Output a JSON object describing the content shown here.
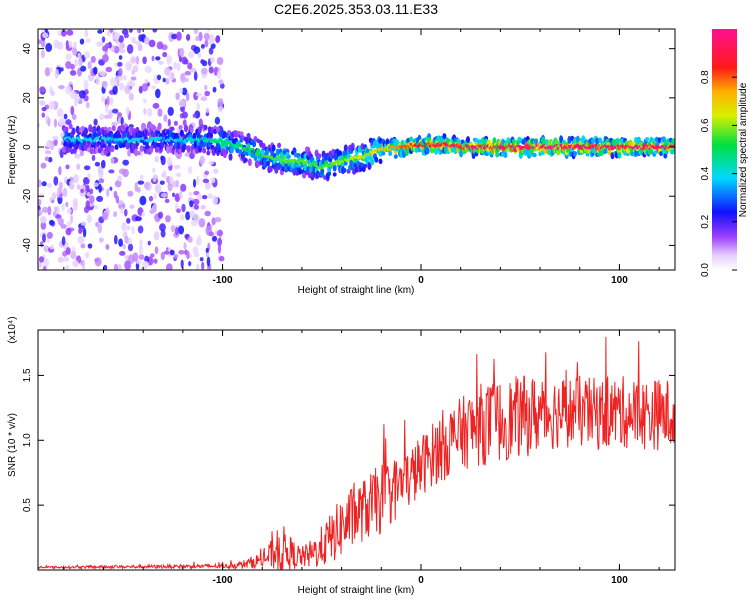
{
  "figure_title": "C2E6.2025.353.03.11.E33",
  "colors": {
    "snr_line": "#ee2222",
    "axis": "#000000",
    "background": "#ffffff"
  },
  "chart_data": [
    {
      "type": "heatmap",
      "title": "C2E6.2025.353.03.11.E33",
      "xlabel": "Height of straight line (km)",
      "ylabel": "Frequency (Hz)",
      "xlim": [
        -193,
        128
      ],
      "ylim": [
        -50,
        48
      ],
      "xticks": [
        -100,
        0,
        100
      ],
      "xtick_labels": [
        "-100",
        "0",
        "100"
      ],
      "yticks": [
        40,
        20,
        0,
        -20,
        -40
      ],
      "ytick_labels": [
        "40",
        "20",
        "0",
        "-20",
        "-40"
      ],
      "colorbar": {
        "label": "Normalized spectral amplitude",
        "range": [
          0.0,
          1.0
        ],
        "ticks": [
          0.0,
          0.2,
          0.4,
          0.6,
          0.8
        ],
        "tick_labels": [
          "0.0",
          "0.2",
          "0.4",
          "0.6",
          "0.8"
        ],
        "colormap": "rainbow (white→violet→blue→cyan→green→yellow→red→magenta)"
      },
      "ridge": {
        "description": "frequency of the dominant spectral ridge vs height",
        "x": [
          -170,
          -150,
          -130,
          -110,
          -100,
          -90,
          -80,
          -70,
          -60,
          -50,
          -40,
          -30,
          -20,
          -10,
          0,
          10,
          20,
          40,
          60,
          80,
          100,
          128
        ],
        "frequency": [
          3,
          3,
          3,
          3,
          2,
          0,
          -3,
          -5,
          -6,
          -8,
          -6,
          -4,
          -1,
          0,
          1,
          1,
          0,
          0,
          0,
          0,
          0,
          0
        ],
        "amplitude": [
          0.35,
          0.35,
          0.35,
          0.38,
          0.45,
          0.45,
          0.5,
          0.52,
          0.52,
          0.5,
          0.55,
          0.6,
          0.65,
          0.75,
          0.82,
          0.85,
          0.88,
          0.9,
          0.92,
          0.9,
          0.9,
          0.9
        ]
      },
      "noise_region": {
        "x_range": [
          -193,
          -100
        ],
        "frequency_range": [
          -50,
          48
        ],
        "amplitude_range": [
          0.05,
          0.25
        ]
      }
    },
    {
      "type": "line",
      "title": "",
      "xlabel": "Height of straight line (km)",
      "ylabel": "SNR (10 * v/v)",
      "y_multiplier_label": "(x10⁴)",
      "xlim": [
        -193,
        128
      ],
      "ylim": [
        0.0,
        1.85
      ],
      "xticks": [
        -100,
        0,
        100
      ],
      "xtick_labels": [
        "-100",
        "0",
        "100"
      ],
      "yticks": [
        0.5,
        1.0,
        1.5
      ],
      "ytick_labels": [
        "0.5",
        "1.0",
        "1.5"
      ],
      "series": [
        {
          "name": "SNR",
          "envelope_x": [
            -193,
            -100,
            -90,
            -80,
            -75,
            -70,
            -65,
            -60,
            -55,
            -50,
            -45,
            -40,
            -35,
            -30,
            -25,
            -20,
            -15,
            -10,
            -5,
            0,
            5,
            10,
            20,
            30,
            40,
            50,
            60,
            70,
            80,
            90,
            100,
            110,
            120,
            128
          ],
          "envelope_mean": [
            0.02,
            0.03,
            0.04,
            0.08,
            0.12,
            0.16,
            0.12,
            0.1,
            0.12,
            0.18,
            0.25,
            0.33,
            0.4,
            0.45,
            0.5,
            0.55,
            0.6,
            0.66,
            0.72,
            0.8,
            0.88,
            0.95,
            1.05,
            1.12,
            1.15,
            1.18,
            1.2,
            1.22,
            1.22,
            1.2,
            1.22,
            1.2,
            1.2,
            1.2
          ],
          "envelope_spread": [
            0.01,
            0.02,
            0.04,
            0.08,
            0.15,
            0.25,
            0.15,
            0.1,
            0.15,
            0.2,
            0.25,
            0.3,
            0.3,
            0.3,
            0.32,
            0.35,
            0.32,
            0.3,
            0.3,
            0.3,
            0.3,
            0.35,
            0.35,
            0.4,
            0.4,
            0.4,
            0.38,
            0.35,
            0.35,
            0.35,
            0.35,
            0.35,
            0.35,
            0.35
          ]
        }
      ]
    }
  ]
}
